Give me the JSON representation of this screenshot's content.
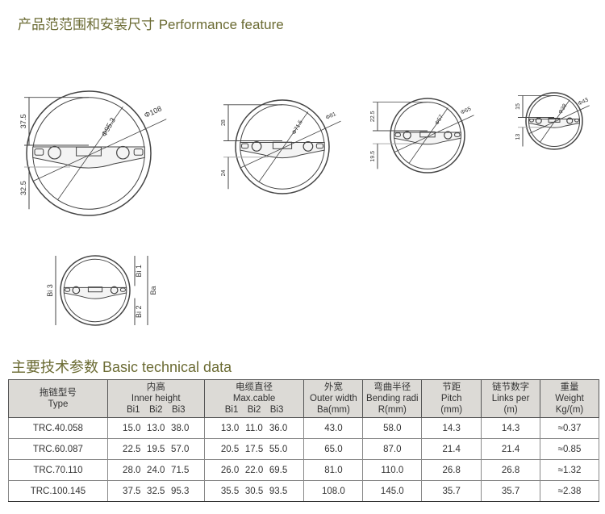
{
  "performance": {
    "title": "产品范范围和安装尺寸  Performance feature",
    "diagrams": [
      {
        "inner_dia": "Φ95.3",
        "outer_dia": "Φ108",
        "top_dim": "37.5",
        "bottom_dim": "32.5"
      },
      {
        "inner_dia": "Φ71.5",
        "outer_dia": "Φ81",
        "top_dim": "28",
        "bottom_dim": "24"
      },
      {
        "inner_dia": "Φ57",
        "outer_dia": "Φ65",
        "top_dim": "22.5",
        "bottom_dim": "19.5"
      },
      {
        "inner_dia": "Φ38",
        "outer_dia": "Φ43",
        "top_dim": "15",
        "bottom_dim": "13"
      }
    ],
    "legend_diagram": {
      "bi1": "Bi 1",
      "bi2": "Bi 2",
      "bi3": "Bi 3",
      "ba": "Ba"
    }
  },
  "technical": {
    "title": "主要技术参数  Basic technical data",
    "headers": {
      "type": [
        "拖链型号",
        "Type"
      ],
      "inner": [
        "内高",
        "Inner height"
      ],
      "cable": [
        "电缆直径",
        "Max.cable"
      ],
      "sub": [
        "Bi1",
        "Bi2",
        "Bi3"
      ],
      "outer": [
        "外宽",
        "Outer width",
        "Ba(mm)"
      ],
      "bend": [
        "弯曲半径",
        "Bending radi",
        "R(mm)"
      ],
      "pitch": [
        "节距",
        "Pitch",
        "(mm)"
      ],
      "links": [
        "链节数字",
        "Links per",
        "(m)"
      ],
      "weight": [
        "重量",
        "Weight",
        "Kg/(m)"
      ]
    },
    "rows": [
      {
        "type": "TRC.40.058",
        "inner": [
          "15.0",
          "13.0",
          "38.0"
        ],
        "cable": [
          "13.0",
          "11.0",
          "36.0"
        ],
        "outer": "43.0",
        "bend": "58.0",
        "pitch": "14.3",
        "links": "14.3",
        "weight": "≈0.37"
      },
      {
        "type": "TRC.60.087",
        "inner": [
          "22.5",
          "19.5",
          "57.0"
        ],
        "cable": [
          "20.5",
          "17.5",
          "55.0"
        ],
        "outer": "65.0",
        "bend": "87.0",
        "pitch": "21.4",
        "links": "21.4",
        "weight": "≈0.85"
      },
      {
        "type": "TRC.70.110",
        "inner": [
          "28.0",
          "24.0",
          "71.5"
        ],
        "cable": [
          "26.0",
          "22.0",
          "69.5"
        ],
        "outer": "81.0",
        "bend": "110.0",
        "pitch": "26.8",
        "links": "26.8",
        "weight": "≈1.32"
      },
      {
        "type": "TRC.100.145",
        "inner": [
          "37.5",
          "32.5",
          "95.3"
        ],
        "cable": [
          "35.5",
          "30.5",
          "93.5"
        ],
        "outer": "108.0",
        "bend": "145.0",
        "pitch": "35.7",
        "links": "35.7",
        "weight": "≈2.38"
      }
    ]
  }
}
